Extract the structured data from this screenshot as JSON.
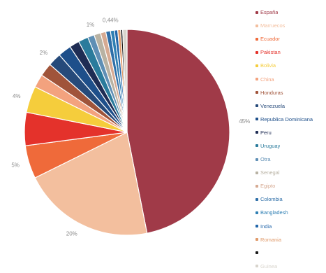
{
  "chart_data": {
    "type": "pie",
    "title": "",
    "start_angle_deg": 0,
    "direction": "clockwise",
    "legend_position": "right",
    "slices": [
      {
        "name": "España",
        "value": 45,
        "label": "45%",
        "color": "#a03a48"
      },
      {
        "name": "Marruecos",
        "value": 20,
        "label": "20%",
        "color": "#f3bf9e"
      },
      {
        "name": "Ecuador",
        "value": 5,
        "label": "5%",
        "color": "#ef6a3a"
      },
      {
        "name": "Pakistan",
        "value": 5,
        "label": "",
        "color": "#e4322b"
      },
      {
        "name": "Bolivia",
        "value": 4,
        "label": "4%",
        "color": "#f5cd3c"
      },
      {
        "name": "China",
        "value": 2,
        "label": "",
        "color": "#f3a27e"
      },
      {
        "name": "Honduras",
        "value": 2,
        "label": "",
        "color": "#a0543a"
      },
      {
        "name": "Venezuela",
        "value": 2,
        "label": "2%",
        "color": "#264a7a"
      },
      {
        "name": "Republica Dominicana",
        "value": 2,
        "label": "",
        "color": "#1e4f8a"
      },
      {
        "name": "Peru",
        "value": 1.5,
        "label": "",
        "color": "#1f2d54"
      },
      {
        "name": "Uruguay",
        "value": 1.5,
        "label": "",
        "color": "#2a7b9c"
      },
      {
        "name": "Otra",
        "value": 1,
        "label": "",
        "color": "#5f8fb5"
      },
      {
        "name": "Senegal",
        "value": 1,
        "label": "1%",
        "color": "#b8b2a3"
      },
      {
        "name": "Egipto",
        "value": 0.8,
        "label": "",
        "color": "#d6aa92"
      },
      {
        "name": "Colombia",
        "value": 0.7,
        "label": "",
        "color": "#2f6fa8"
      },
      {
        "name": "Bangladesh",
        "value": 0.6,
        "label": "",
        "color": "#2f7fb3"
      },
      {
        "name": "India",
        "value": 0.5,
        "label": "",
        "color": "#2266aa"
      },
      {
        "name": "Romania",
        "value": 0.44,
        "label": "0,44%",
        "color": "#e09a6a"
      },
      {
        "name": "",
        "value": 0.3,
        "label": "",
        "color": "#1a1a1a"
      },
      {
        "name": "Guinea",
        "value": 0.66,
        "label": "",
        "color": "#d8d4cc"
      }
    ]
  }
}
